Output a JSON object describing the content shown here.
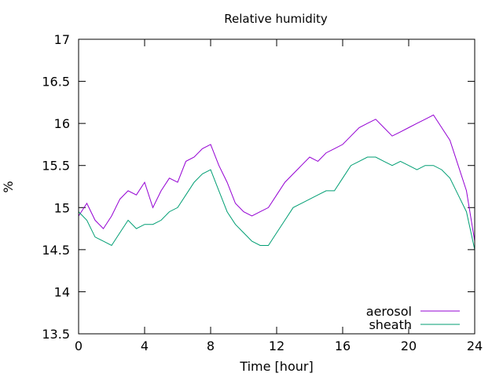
{
  "chart_data": {
    "type": "line",
    "title": "Relative humidity",
    "xlabel": "Time [hour]",
    "ylabel": "%",
    "xlim": [
      0,
      24
    ],
    "ylim": [
      13.5,
      17
    ],
    "xticks": [
      0,
      4,
      8,
      12,
      16,
      20,
      24
    ],
    "yticks": [
      13.5,
      14,
      14.5,
      15,
      15.5,
      16,
      16.5,
      17
    ],
    "legend_position": "bottom-right",
    "grid": false,
    "series": [
      {
        "name": "aerosol",
        "color": "#9400d3",
        "x": [
          0,
          0.5,
          1,
          1.5,
          2,
          2.5,
          3,
          3.5,
          4,
          4.5,
          5,
          5.5,
          6,
          6.5,
          7,
          7.5,
          8,
          8.5,
          9,
          9.5,
          10,
          10.5,
          11,
          11.5,
          12,
          12.5,
          13,
          13.5,
          14,
          14.5,
          15,
          15.5,
          16,
          16.5,
          17,
          17.5,
          18,
          18.5,
          19,
          19.5,
          20,
          20.5,
          21,
          21.5,
          22,
          22.5,
          23,
          23.5,
          24
        ],
        "y": [
          14.9,
          15.05,
          14.85,
          14.75,
          14.9,
          15.1,
          15.2,
          15.15,
          15.3,
          15.0,
          15.2,
          15.35,
          15.3,
          15.55,
          15.6,
          15.7,
          15.75,
          15.5,
          15.3,
          15.05,
          14.95,
          14.9,
          14.95,
          15.0,
          15.15,
          15.3,
          15.4,
          15.5,
          15.6,
          15.55,
          15.65,
          15.7,
          15.75,
          15.85,
          15.95,
          16.0,
          16.05,
          15.95,
          15.85,
          15.9,
          15.95,
          16.0,
          16.05,
          16.1,
          15.95,
          15.8,
          15.5,
          15.2,
          14.6
        ]
      },
      {
        "name": "sheath",
        "color": "#009e73",
        "x": [
          0,
          0.5,
          1,
          1.5,
          2,
          2.5,
          3,
          3.5,
          4,
          4.5,
          5,
          5.5,
          6,
          6.5,
          7,
          7.5,
          8,
          8.5,
          9,
          9.5,
          10,
          10.5,
          11,
          11.5,
          12,
          12.5,
          13,
          13.5,
          14,
          14.5,
          15,
          15.5,
          16,
          16.5,
          17,
          17.5,
          18,
          18.5,
          19,
          19.5,
          20,
          20.5,
          21,
          21.5,
          22,
          22.5,
          23,
          23.5,
          24
        ],
        "y": [
          14.95,
          14.85,
          14.65,
          14.6,
          14.55,
          14.7,
          14.85,
          14.75,
          14.8,
          14.8,
          14.85,
          14.95,
          15.0,
          15.15,
          15.3,
          15.4,
          15.45,
          15.2,
          14.95,
          14.8,
          14.7,
          14.6,
          14.55,
          14.55,
          14.7,
          14.85,
          15.0,
          15.05,
          15.1,
          15.15,
          15.2,
          15.2,
          15.35,
          15.5,
          15.55,
          15.6,
          15.6,
          15.55,
          15.5,
          15.55,
          15.5,
          15.45,
          15.5,
          15.5,
          15.45,
          15.35,
          15.15,
          14.95,
          14.5
        ]
      }
    ]
  }
}
